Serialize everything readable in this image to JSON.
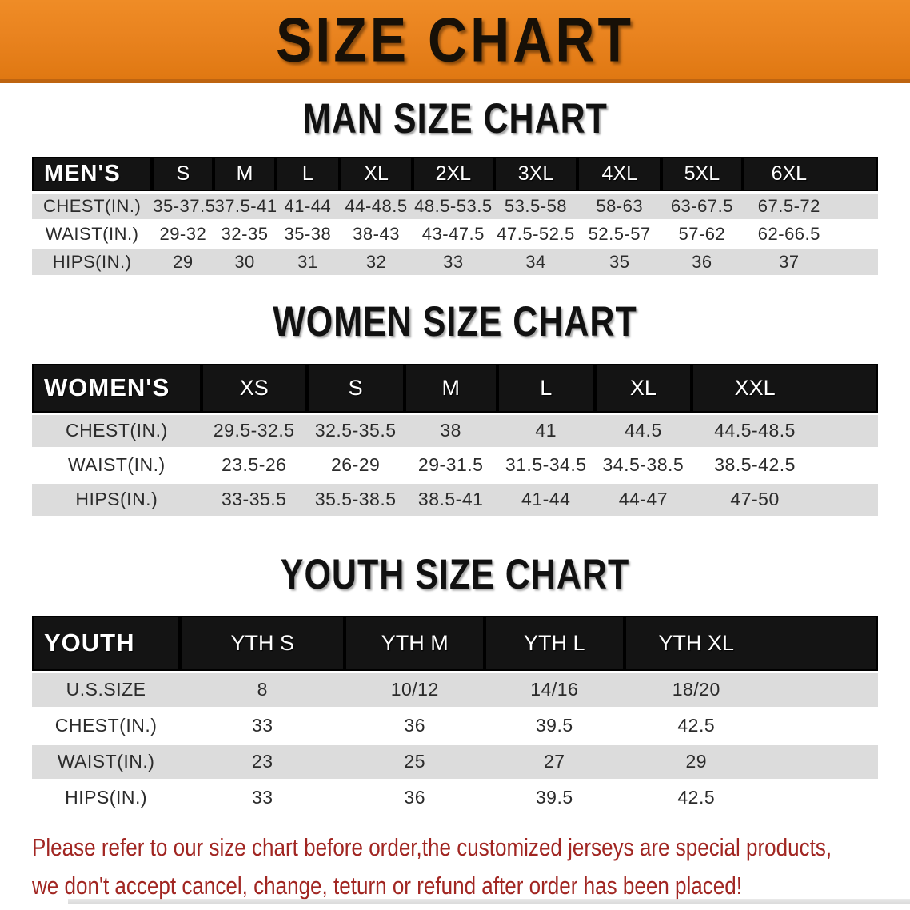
{
  "banner": {
    "title": "SIZE CHART"
  },
  "colors": {
    "orange": "#E9831F",
    "band": "#141414",
    "rowalt": "#DCDCDC",
    "red": "#A12622"
  },
  "sections": [
    {
      "heading": "MAN SIZE CHART",
      "table": {
        "header": [
          "MEN'S",
          "S",
          "M",
          "L",
          "XL",
          "2XL",
          "3XL",
          "4XL",
          "5XL",
          "6XL"
        ],
        "rows": [
          {
            "label": "CHEST(IN.)",
            "values": [
              "35-37.5",
              "37.5-41",
              "41-44",
              "44-48.5",
              "48.5-53.5",
              "53.5-58",
              "58-63",
              "63-67.5",
              "67.5-72"
            ]
          },
          {
            "label": "WAIST(IN.)",
            "values": [
              "29-32",
              "32-35",
              "35-38",
              "38-43",
              "43-47.5",
              "47.5-52.5",
              "52.5-57",
              "57-62",
              "62-66.5"
            ]
          },
          {
            "label": "HIPS(IN.)",
            "values": [
              "29",
              "30",
              "31",
              "32",
              "33",
              "34",
              "35",
              "36",
              "37"
            ]
          }
        ]
      }
    },
    {
      "heading": "WOMEN SIZE CHART",
      "table": {
        "header": [
          "WOMEN'S",
          "XS",
          "S",
          "M",
          "L",
          "XL",
          "XXL"
        ],
        "rows": [
          {
            "label": "CHEST(IN.)",
            "values": [
              "29.5-32.5",
              "32.5-35.5",
              "38",
              "41",
              "44.5",
              "44.5-48.5"
            ]
          },
          {
            "label": "WAIST(IN.)",
            "values": [
              "23.5-26",
              "26-29",
              "29-31.5",
              "31.5-34.5",
              "34.5-38.5",
              "38.5-42.5"
            ]
          },
          {
            "label": "HIPS(IN.)",
            "values": [
              "33-35.5",
              "35.5-38.5",
              "38.5-41",
              "41-44",
              "44-47",
              "47-50"
            ]
          }
        ]
      }
    },
    {
      "heading": "YOUTH SIZE CHART",
      "table": {
        "header": [
          "YOUTH",
          "YTH S",
          "YTH M",
          "YTH L",
          "YTH XL"
        ],
        "rows": [
          {
            "label": "U.S.SIZE",
            "values": [
              "8",
              "10/12",
              "14/16",
              "18/20"
            ]
          },
          {
            "label": "CHEST(IN.)",
            "values": [
              "33",
              "36",
              "39.5",
              "42.5"
            ]
          },
          {
            "label": "WAIST(IN.)",
            "values": [
              "23",
              "25",
              "27",
              "29"
            ]
          },
          {
            "label": "HIPS(IN.)",
            "values": [
              "33",
              "36",
              "39.5",
              "42.5"
            ]
          }
        ]
      }
    }
  ],
  "disclaimer": {
    "line1": "Please refer to our size chart before order,the customized jerseys are special products,",
    "line2": "we don't accept cancel, change, teturn or refund after order has been placed!"
  }
}
